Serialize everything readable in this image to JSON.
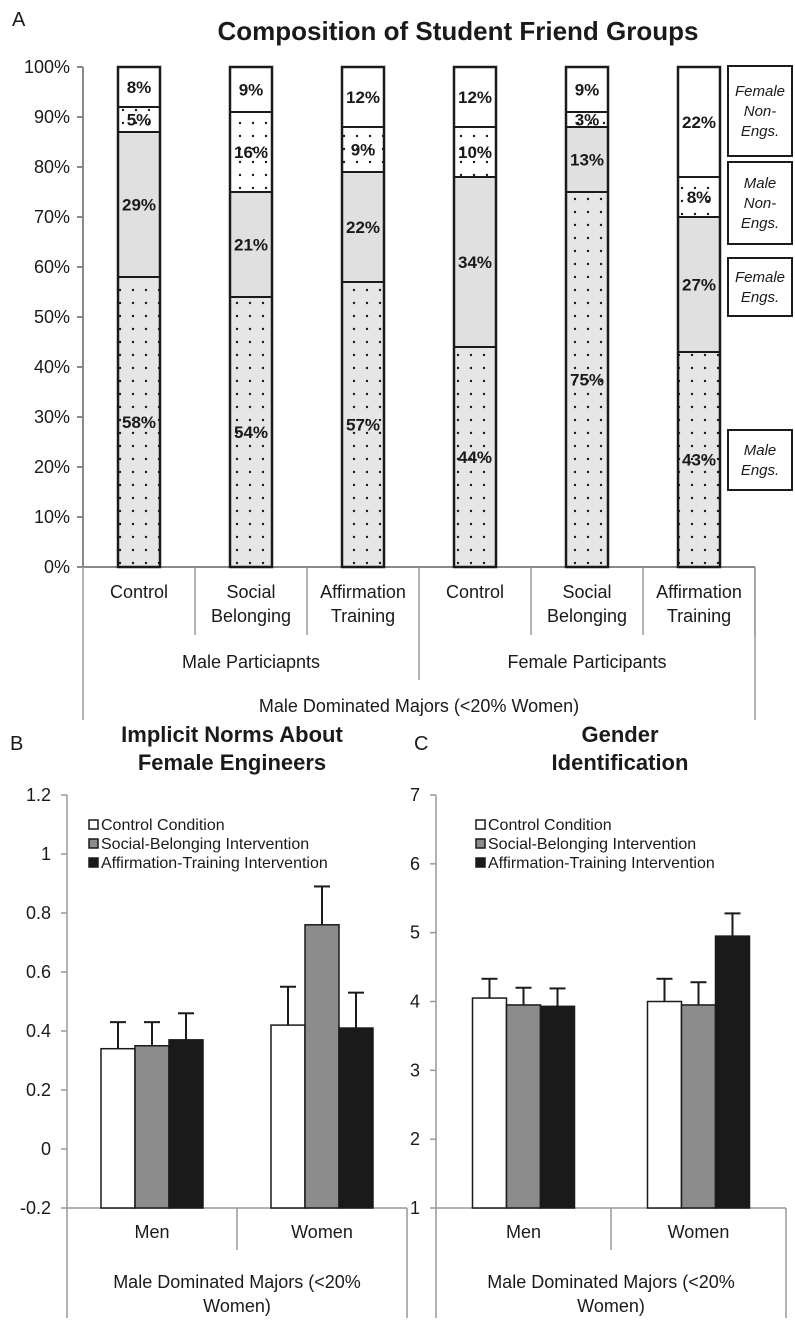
{
  "panels": {
    "a": {
      "letter": "A"
    },
    "b": {
      "letter": "B"
    },
    "c": {
      "letter": "C"
    }
  },
  "chart_data": [
    {
      "type": "bar",
      "stacked": true,
      "title": "Composition of Student Friend Groups",
      "ylim": [
        0,
        100
      ],
      "yticks": [
        "0%",
        "10%",
        "20%",
        "30%",
        "40%",
        "50%",
        "60%",
        "70%",
        "80%",
        "90%",
        "100%"
      ],
      "categories": [
        "Control",
        "Social Belonging",
        "Affirmation Training",
        "Control",
        "Social Belonging",
        "Affirmation Training"
      ],
      "groups": [
        "Male Particiapnts",
        "Female Participants"
      ],
      "supergroup": "Male Dominated Majors (<20% Women)",
      "series": [
        {
          "name": "Male Engs.",
          "values": [
            58,
            54,
            57,
            44,
            75,
            43
          ],
          "labels": [
            "58%",
            "54%",
            "57%",
            "44%",
            "75%",
            "43%"
          ]
        },
        {
          "name": "Female Engs.",
          "values": [
            29,
            21,
            22,
            34,
            13,
            27
          ],
          "labels": [
            "29%",
            "21%",
            "22%",
            "34%",
            "13%",
            "27%"
          ]
        },
        {
          "name": "Male Non-Engs.",
          "values": [
            5,
            16,
            9,
            10,
            3,
            8
          ],
          "labels": [
            "5%",
            "16%",
            "9%",
            "10%",
            "3%",
            "8%"
          ]
        },
        {
          "name": "Female Non-Engs.",
          "values": [
            8,
            9,
            12,
            12,
            9,
            22
          ],
          "labels": [
            "8%",
            "9%",
            "12%",
            "12%",
            "9%",
            "22%"
          ]
        }
      ],
      "legend": [
        "Female Non-Engs.",
        "Male Non-Engs.",
        "Female Engs.",
        "Male Engs."
      ],
      "legend_placement": "right"
    },
    {
      "type": "bar",
      "title": "Implicit Norms About Female Engineers",
      "ylim": [
        -0.2,
        1.2
      ],
      "yticks": [
        "-0.2",
        "0",
        "0.2",
        "0.4",
        "0.6",
        "0.8",
        "1",
        "1.2"
      ],
      "categories": [
        "Men",
        "Women"
      ],
      "xgroup": "Male Dominated Majors (<20% Women)",
      "series": [
        {
          "name": "Control Condition",
          "values": [
            0.34,
            0.42
          ],
          "errors": [
            0.09,
            0.13
          ]
        },
        {
          "name": "Social-Belonging Intervention",
          "values": [
            0.35,
            0.76
          ],
          "errors": [
            0.08,
            0.13
          ]
        },
        {
          "name": "Affirmation-Training Intervention",
          "values": [
            0.37,
            0.41
          ],
          "errors": [
            0.09,
            0.12
          ]
        }
      ],
      "legend_placement": "top"
    },
    {
      "type": "bar",
      "title": "Gender Identification",
      "ylim": [
        1,
        7
      ],
      "yticks": [
        "1",
        "2",
        "3",
        "4",
        "5",
        "6",
        "7"
      ],
      "categories": [
        "Men",
        "Women"
      ],
      "xgroup": "Male Dominated Majors (<20% Women)",
      "series": [
        {
          "name": "Control Condition",
          "values": [
            4.05,
            4.0
          ],
          "errors": [
            0.28,
            0.33
          ]
        },
        {
          "name": "Social-Belonging Intervention",
          "values": [
            3.95,
            3.95
          ],
          "errors": [
            0.25,
            0.33
          ]
        },
        {
          "name": "Affirmation-Training Intervention",
          "values": [
            3.93,
            4.95
          ],
          "errors": [
            0.26,
            0.33
          ]
        }
      ],
      "legend_placement": "top"
    }
  ]
}
